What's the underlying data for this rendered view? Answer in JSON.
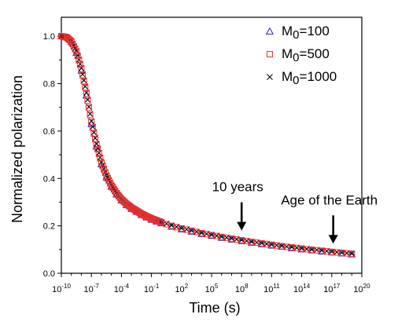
{
  "chart_data": {
    "type": "scatter",
    "title": "",
    "xlabel": "Time (s)",
    "ylabel": "Normalized polarization",
    "x_scale": "log",
    "xlim": [
      1e-10,
      1e+20
    ],
    "ylim": [
      0.0,
      1.08
    ],
    "x_tick_labels": [
      {
        "base": "10",
        "exp": "-10"
      },
      {
        "base": "10",
        "exp": "-7"
      },
      {
        "base": "10",
        "exp": "-4"
      },
      {
        "base": "10",
        "exp": "-1"
      },
      {
        "base": "10",
        "exp": "2"
      },
      {
        "base": "10",
        "exp": "5"
      },
      {
        "base": "10",
        "exp": "8"
      },
      {
        "base": "10",
        "exp": "11"
      },
      {
        "base": "10",
        "exp": "14"
      },
      {
        "base": "10",
        "exp": "17"
      },
      {
        "base": "10",
        "exp": "20"
      }
    ],
    "y_tick_labels": [
      "0.0",
      "0.2",
      "0.4",
      "0.6",
      "0.8",
      "1.0"
    ],
    "legend_position": "top-right",
    "colors": {
      "M0=100": "#2222cc",
      "M0=500": "#e83030",
      "M0=1000": "#000000"
    },
    "series": [
      {
        "name": "M0=100",
        "label_base": "M",
        "label_sub": "0",
        "label_tail": "=100",
        "marker": "triangle",
        "x": [
          1e-10,
          3.2e-10,
          1e-09,
          3.2e-09,
          1e-08,
          3.2e-08,
          1e-07,
          3.2e-07,
          1e-06,
          3.2e-06,
          1e-05,
          3.2e-05,
          0.0001,
          0.00032,
          0.001,
          0.01,
          0.1,
          1.0,
          10.0,
          100.0,
          1000.0,
          10000.0,
          100000.0,
          1000000.0,
          10000000.0,
          100000000.0,
          1000000000.0,
          10000000000.0,
          100000000000.0,
          1000000000000.0,
          10000000000000.0,
          100000000000000.0,
          1000000000000000.0,
          1e+16,
          1e+17,
          1e+18,
          1e+19
        ],
        "y": [
          1.0,
          0.995,
          0.975,
          0.93,
          0.855,
          0.75,
          0.63,
          0.535,
          0.46,
          0.405,
          0.365,
          0.333,
          0.308,
          0.288,
          0.272,
          0.246,
          0.226,
          0.211,
          0.197,
          0.186,
          0.176,
          0.166,
          0.158,
          0.15,
          0.143,
          0.136,
          0.129,
          0.123,
          0.117,
          0.112,
          0.106,
          0.101,
          0.097,
          0.092,
          0.088,
          0.084,
          0.08
        ]
      },
      {
        "name": "M0=500",
        "label_base": "M",
        "label_sub": "0",
        "label_tail": "=500",
        "marker": "square",
        "x": [
          1e-10,
          3.2e-10,
          1e-09,
          3.2e-09,
          1e-08,
          3.2e-08,
          1e-07,
          3.2e-07,
          1e-06,
          3.2e-06,
          1e-05,
          3.2e-05,
          0.0001,
          0.00032,
          0.001,
          0.01,
          0.1,
          1.0,
          10.0,
          100.0,
          1000.0,
          10000.0,
          100000.0,
          1000000.0,
          10000000.0,
          100000000.0,
          1000000000.0,
          10000000000.0,
          100000000000.0,
          1000000000000.0,
          10000000000000.0,
          100000000000000.0,
          1000000000000000.0,
          1e+16,
          1e+17,
          1e+18,
          1e+19
        ],
        "y": [
          1.0,
          0.996,
          0.978,
          0.935,
          0.862,
          0.758,
          0.638,
          0.542,
          0.466,
          0.41,
          0.37,
          0.337,
          0.312,
          0.292,
          0.276,
          0.25,
          0.23,
          0.214,
          0.2,
          0.189,
          0.179,
          0.169,
          0.161,
          0.153,
          0.146,
          0.139,
          0.132,
          0.126,
          0.12,
          0.114,
          0.109,
          0.104,
          0.099,
          0.095,
          0.09,
          0.086,
          0.082
        ]
      },
      {
        "name": "M0=1000",
        "label_base": "M",
        "label_sub": "0",
        "label_tail": "=1000",
        "marker": "cross",
        "x": [
          1e-10,
          3.2e-10,
          1e-09,
          3.2e-09,
          1e-08,
          3.2e-08,
          1e-07,
          3.2e-07,
          1e-06,
          3.2e-06,
          1e-05,
          3.2e-05,
          0.0001,
          0.00032,
          0.001,
          0.01,
          0.1,
          1.0,
          10.0,
          100.0,
          1000.0,
          10000.0,
          100000.0,
          1000000.0,
          10000000.0,
          100000000.0,
          1000000000.0,
          10000000000.0,
          100000000000.0,
          1000000000000.0,
          10000000000000.0,
          100000000000000.0,
          1000000000000000.0,
          1e+16,
          1e+17,
          1e+18,
          1e+19
        ],
        "y": [
          1.0,
          0.996,
          0.979,
          0.937,
          0.865,
          0.762,
          0.642,
          0.546,
          0.469,
          0.413,
          0.372,
          0.339,
          0.314,
          0.294,
          0.278,
          0.252,
          0.232,
          0.216,
          0.202,
          0.19,
          0.18,
          0.17,
          0.162,
          0.154,
          0.147,
          0.14,
          0.133,
          0.127,
          0.121,
          0.115,
          0.11,
          0.105,
          0.1,
          0.096,
          0.091,
          0.087,
          0.083
        ]
      }
    ],
    "annotations": [
      {
        "text": "10 years",
        "x": 100000000.0,
        "y_tip": 0.18
      },
      {
        "text": "Age of the Earth",
        "x": 1.4e+17,
        "y_tip": 0.125
      }
    ]
  }
}
